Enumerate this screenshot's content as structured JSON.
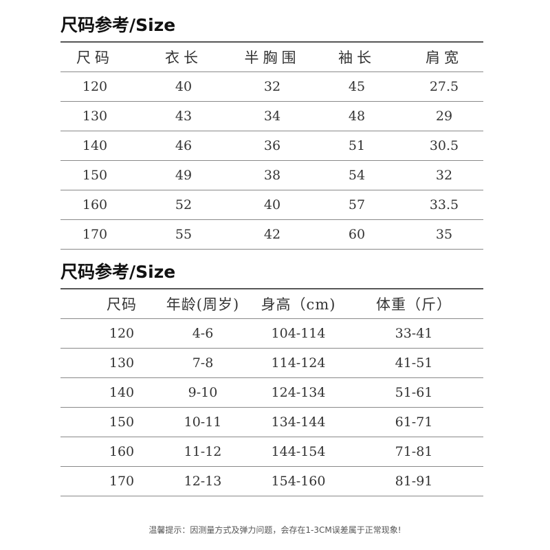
{
  "table1": {
    "title": "尺码参考/Size",
    "headers": [
      "尺码",
      "衣长",
      "半胸围",
      "袖长",
      "肩宽"
    ],
    "rows": [
      [
        "120",
        "40",
        "32",
        "45",
        "27.5"
      ],
      [
        "130",
        "43",
        "34",
        "48",
        "29"
      ],
      [
        "140",
        "46",
        "36",
        "51",
        "30.5"
      ],
      [
        "150",
        "49",
        "38",
        "54",
        "32"
      ],
      [
        "160",
        "52",
        "40",
        "57",
        "33.5"
      ],
      [
        "170",
        "55",
        "42",
        "60",
        "35"
      ]
    ]
  },
  "table2": {
    "title": "尺码参考/Size",
    "headers": [
      "尺码",
      "年龄(周岁)",
      "身高（cm)",
      "体重（斤）"
    ],
    "rows": [
      [
        "120",
        "4-6",
        "104-114",
        "33-41"
      ],
      [
        "130",
        "7-8",
        "114-124",
        "41-51"
      ],
      [
        "140",
        "9-10",
        "124-134",
        "51-61"
      ],
      [
        "150",
        "10-11",
        "134-144",
        "61-71"
      ],
      [
        "160",
        "11-12",
        "144-154",
        "71-81"
      ],
      [
        "170",
        "12-13",
        "154-160",
        "81-91"
      ]
    ]
  },
  "footer": "温馨提示：因测量方式及弹力问题，会存在1-3CM误差属于正常现象!"
}
